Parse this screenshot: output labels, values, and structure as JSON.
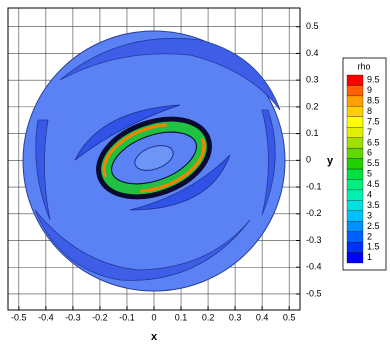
{
  "chart_data": {
    "type": "contour",
    "x_label": "x",
    "y_label": "y",
    "xlim": [
      -0.54,
      0.54
    ],
    "ylim": [
      -0.56,
      0.57
    ],
    "xticks": [
      -0.5,
      -0.4,
      -0.3,
      -0.2,
      -0.1,
      0,
      0.1,
      0.2,
      0.3,
      0.4,
      0.5
    ],
    "yticks": [
      -0.5,
      -0.4,
      -0.3,
      -0.2,
      -0.1,
      0,
      0.1,
      0.2,
      0.3,
      0.4,
      0.5
    ],
    "grid": true,
    "colorbar": {
      "title": "rho",
      "levels": [
        1,
        1.5,
        2,
        2.5,
        3,
        3.5,
        4,
        4.5,
        5,
        5.5,
        6,
        6.5,
        7,
        7.5,
        8,
        8.5,
        9,
        9.5
      ],
      "colors": [
        "#0000ff",
        "#0030ff",
        "#0060ff",
        "#0090ff",
        "#00c0ff",
        "#00e0e0",
        "#00f0b0",
        "#00f080",
        "#00e040",
        "#20d000",
        "#60d800",
        "#a0e000",
        "#e0f000",
        "#ffff00",
        "#ffd000",
        "#ffa000",
        "#ff6000",
        "#ff0000"
      ]
    }
  }
}
